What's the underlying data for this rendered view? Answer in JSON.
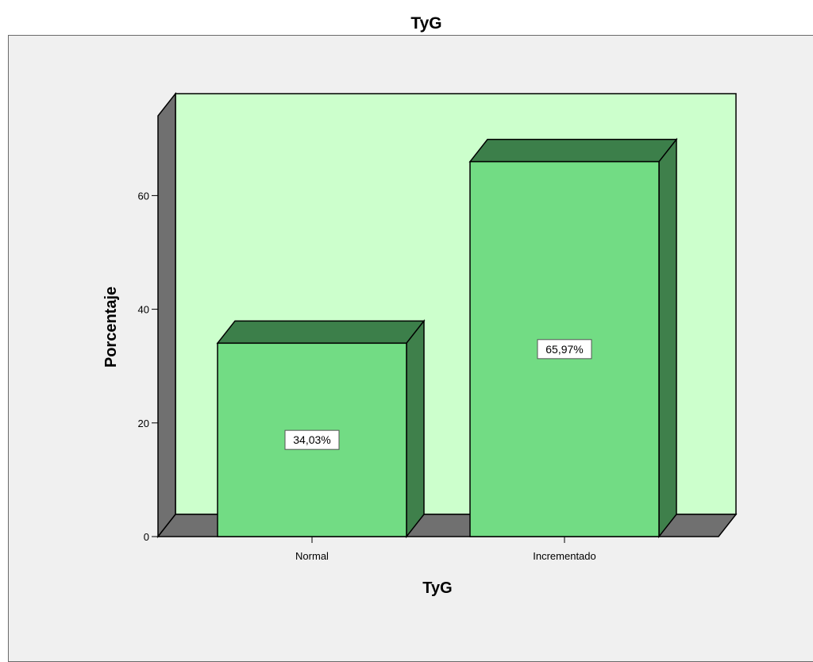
{
  "chart_data": {
    "type": "bar",
    "title": "TyG",
    "xlabel": "TyG",
    "ylabel": "Porcentaje",
    "categories": [
      "Normal",
      "Incrementado"
    ],
    "values": [
      34.03,
      65.97
    ],
    "data_labels": [
      "34,03%",
      "65,97%"
    ],
    "ylim": [
      0,
      75
    ],
    "yticks": [
      0,
      20,
      40,
      60
    ],
    "grid": false,
    "legend": "none",
    "three_d": true
  },
  "colors": {
    "bar_front": "#72dc84",
    "bar_top": "#3c7f4a",
    "bar_side": "#3f804b",
    "back_wall": "#ccffcc",
    "side_wall": "#707070",
    "floor": "#707070",
    "frame_bg": "#f0f0f0"
  }
}
